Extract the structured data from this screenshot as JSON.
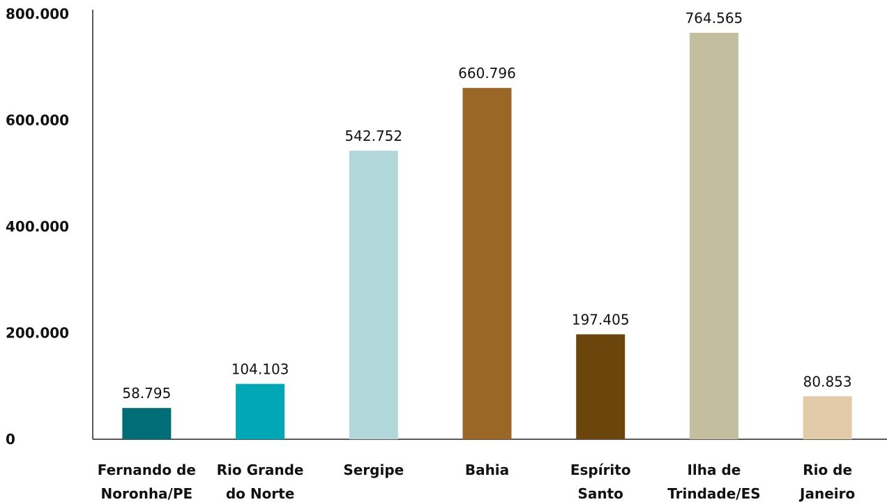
{
  "chart_data": {
    "type": "bar",
    "title": "",
    "xlabel": "",
    "ylabel": "",
    "ylim": [
      0,
      800000
    ],
    "yticks": [
      0,
      200000,
      400000,
      600000,
      800000
    ],
    "ytick_labels": [
      "0",
      "200.000",
      "400.000",
      "600.000",
      "800.000"
    ],
    "grid": false,
    "legend": "none",
    "categories": [
      [
        "Fernando de",
        "Noronha/PE"
      ],
      [
        "Rio Grande",
        "do Norte"
      ],
      [
        "Sergipe"
      ],
      [
        "Bahia"
      ],
      [
        "Espírito",
        "Santo"
      ],
      [
        "Ilha de",
        "Trindade/ES"
      ],
      [
        "Rio de",
        "Janeiro"
      ]
    ],
    "values": [
      58795,
      104103,
      542752,
      660796,
      197405,
      764565,
      80853
    ],
    "value_labels": [
      "58.795",
      "104.103",
      "542.752",
      "660.796",
      "197.405",
      "764.565",
      "80.853"
    ],
    "colors": [
      "#006d77",
      "#00a8b5",
      "#b2d7db",
      "#9a6727",
      "#6b450c",
      "#c3bf9e",
      "#e3cba9"
    ]
  }
}
